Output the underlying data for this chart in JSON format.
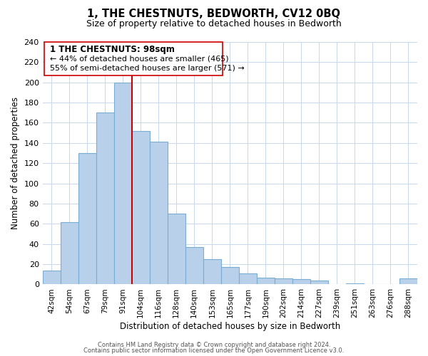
{
  "title": "1, THE CHESTNUTS, BEDWORTH, CV12 0BQ",
  "subtitle": "Size of property relative to detached houses in Bedworth",
  "xlabel": "Distribution of detached houses by size in Bedworth",
  "ylabel": "Number of detached properties",
  "bar_labels": [
    "42sqm",
    "54sqm",
    "67sqm",
    "79sqm",
    "91sqm",
    "104sqm",
    "116sqm",
    "128sqm",
    "140sqm",
    "153sqm",
    "165sqm",
    "177sqm",
    "190sqm",
    "202sqm",
    "214sqm",
    "227sqm",
    "239sqm",
    "251sqm",
    "263sqm",
    "276sqm",
    "288sqm"
  ],
  "bar_heights": [
    14,
    62,
    130,
    170,
    200,
    152,
    141,
    70,
    37,
    25,
    17,
    11,
    7,
    6,
    5,
    4,
    0,
    1,
    0,
    0,
    6
  ],
  "bar_color": "#b8d0ea",
  "bar_edge_color": "#7aadd4",
  "vline_color": "#cc0000",
  "vline_x_idx": 4.5,
  "annotation_lines": [
    "1 THE CHESTNUTS: 98sqm",
    "← 44% of detached houses are smaller (465)",
    "55% of semi-detached houses are larger (571) →"
  ],
  "ylim": [
    0,
    240
  ],
  "yticks": [
    0,
    20,
    40,
    60,
    80,
    100,
    120,
    140,
    160,
    180,
    200,
    220,
    240
  ],
  "footer_line1": "Contains HM Land Registry data © Crown copyright and database right 2024.",
  "footer_line2": "Contains public sector information licensed under the Open Government Licence v3.0.",
  "background_color": "#ffffff",
  "grid_color": "#c8d8ec"
}
